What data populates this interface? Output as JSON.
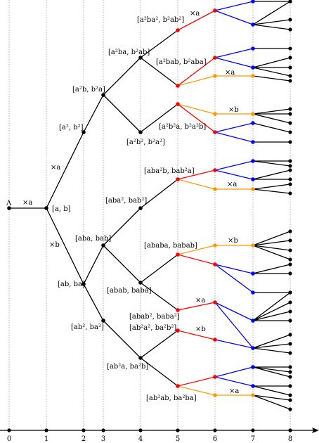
{
  "root_label": "Λ",
  "axis_ticks": [
    "0",
    "1",
    "2",
    "3",
    "4",
    "5",
    "6",
    "7",
    "8"
  ],
  "colors": {
    "black": "#000000",
    "red": "#ff0000",
    "blue": "#0000ff",
    "orange": "#ff9900"
  },
  "node_labels": [
    "[a, b]",
    "[a², b²]",
    "[a²b, b²a]",
    "[a²ba, b²ab]",
    "[a²ba², b²ab²]",
    "[a²bab, b²aba]",
    "[a²b², b²a²]",
    "[a²b²a, b²a²b]",
    "[ab, ba]",
    "[aba, bab]",
    "[aba², bab²]",
    "[aba²b, bab²a]",
    "[abab, baba]",
    "[ababa, babab]",
    "[abab², baba²]",
    "[ab², ba²]",
    "[ab²a², ba²b²]",
    "[ab²a, ba²b]",
    "[ab²ab, ba²ba]"
  ],
  "op_labels": [
    "×a",
    "×a",
    "×b",
    "×a",
    "×a",
    "×b",
    "×a",
    "×b",
    "×a",
    "×b",
    "×a"
  ]
}
